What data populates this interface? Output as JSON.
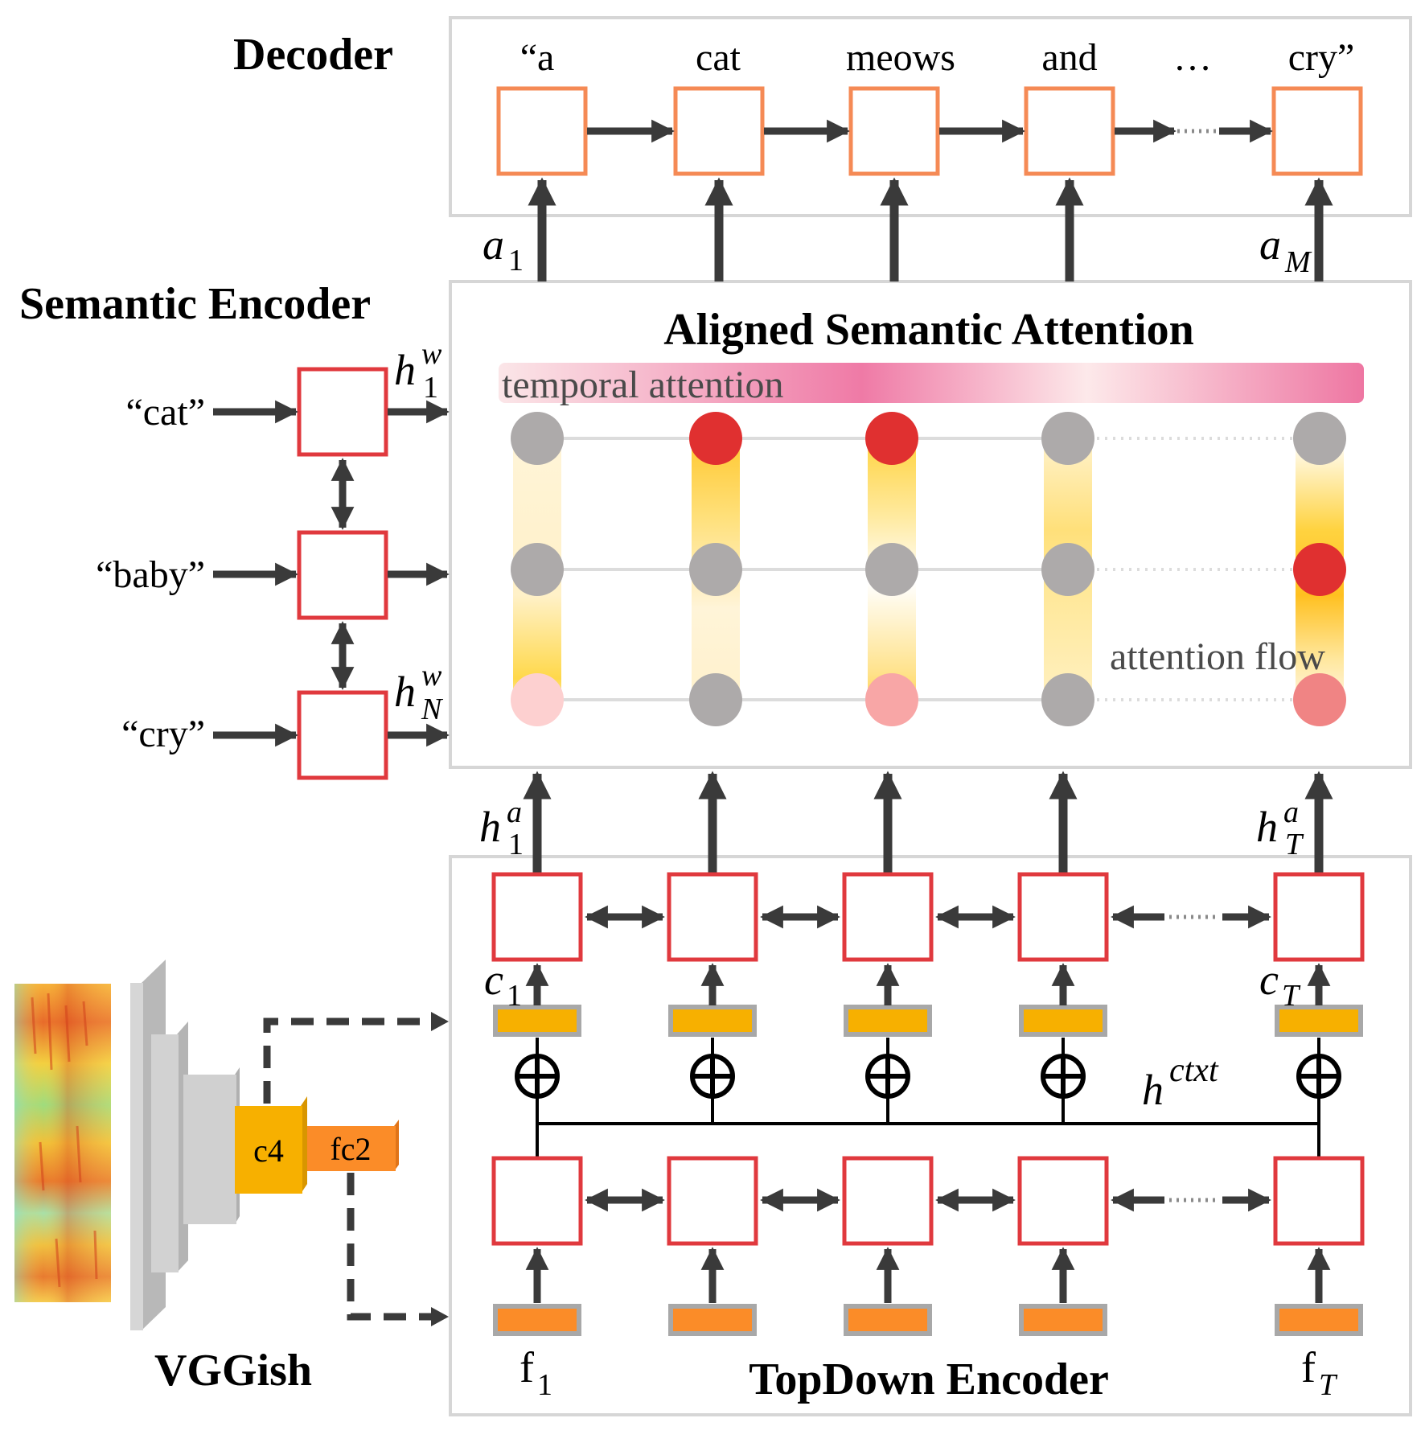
{
  "titles": {
    "decoder": "Decoder",
    "semantic_encoder": "Semantic Encoder",
    "aligned_attention": "Aligned Semantic Attention",
    "vggish": "VGGish",
    "topdown_encoder": "TopDown Encoder"
  },
  "decoder": {
    "words": [
      "“a",
      "cat",
      "meows",
      "and",
      "…",
      "cry”"
    ]
  },
  "semantic_encoder": {
    "inputs": [
      "“cat”",
      "“baby”",
      "“cry”"
    ]
  },
  "attention": {
    "temporal_label": "temporal attention",
    "flow_label": "attention flow"
  },
  "vggish": {
    "conv_label": "c4",
    "fc_label": "fc2"
  },
  "math": {
    "a_base": "a",
    "a_first_sub": "1",
    "a_last_sub": "M",
    "h_base": "h",
    "hw_sup": "w",
    "hw_first_sub": "1",
    "hw_last_sub": "N",
    "ha_sup": "a",
    "ha_first_sub": "1",
    "ha_last_sub": "T",
    "c_base": "c",
    "c_first_sub": "1",
    "c_last_sub": "T",
    "ctxt_sup": "ctxt",
    "f_base": "f",
    "f_first_sub": "1",
    "f_last_sub": "T",
    "oplus": "⊕"
  },
  "colors": {
    "decoder_cell": "#f58a55",
    "encoder_cell": "#e0393e",
    "panel_border": "#d6d6d6",
    "node_gray": "#adaaaa",
    "node_red": "#e03030",
    "node_pink_light": "#fdd0d0",
    "node_pink_mid": "#f8a6a6",
    "node_pink_dark": "#f08484",
    "feature_c": "#f7b000",
    "feature_f": "#fb8c28",
    "attention_bar_light": "#fbe9e9",
    "attention_bar_dark": "#ee7aa4",
    "arrow": "#3a3a3a"
  }
}
